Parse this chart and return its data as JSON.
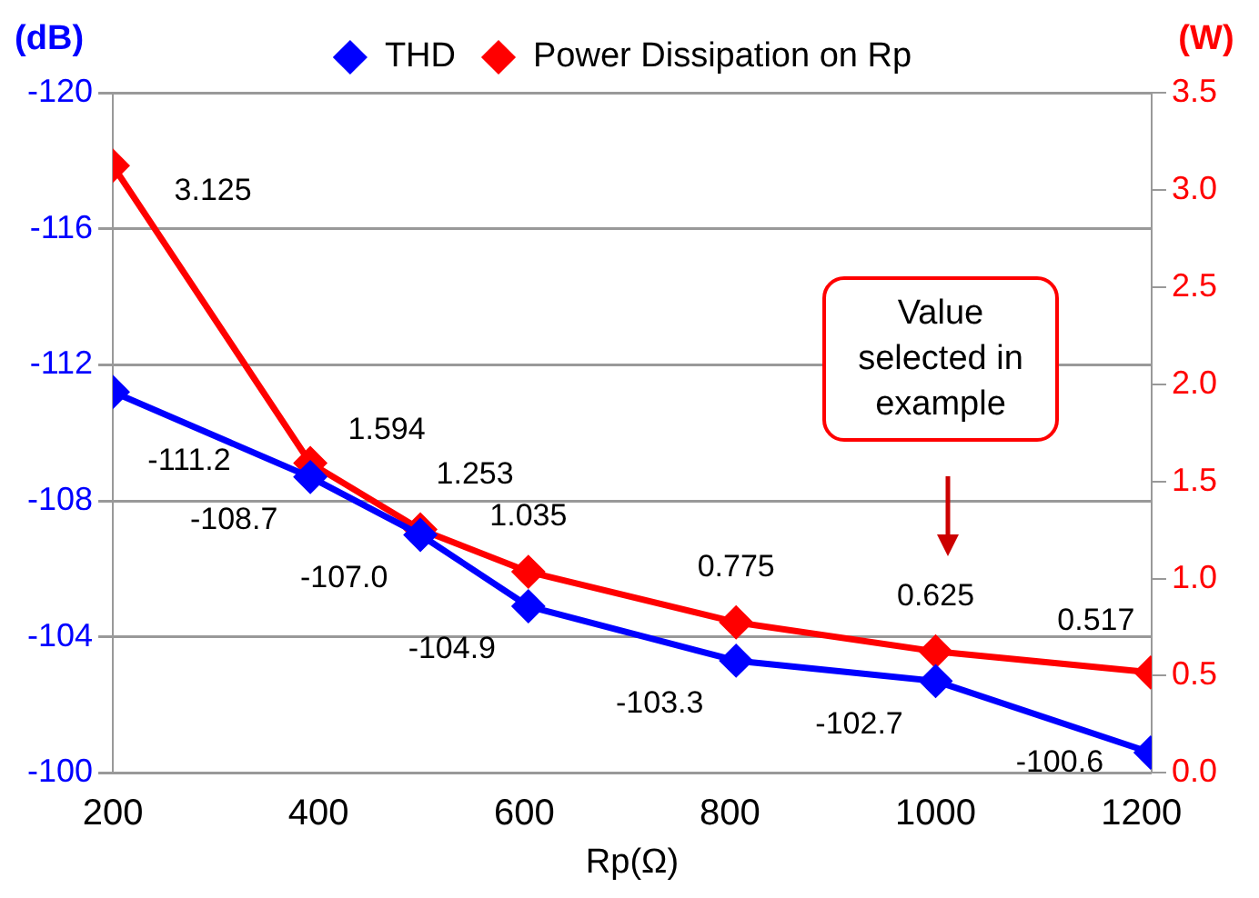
{
  "chart_data": {
    "type": "line",
    "xlabel": "Rp(Ω)",
    "ylabel": "(dB)",
    "y2label": "(W)",
    "x": [
      200,
      392,
      499,
      604,
      806,
      1000,
      1209
    ],
    "xlim": [
      200,
      1210
    ],
    "xticks": [
      200,
      400,
      600,
      800,
      1000,
      1200
    ],
    "ylim": [
      -100,
      -120
    ],
    "yticks": [
      -100,
      -104,
      -108,
      -112,
      -116,
      -120
    ],
    "y2lim": [
      0,
      3.5
    ],
    "y2ticks": [
      {
        "value": 0,
        "label": "0.0"
      },
      {
        "value": 0.5,
        "label": "0.5"
      },
      {
        "value": 1,
        "label": "1.0"
      },
      {
        "value": 1.5,
        "label": "1.5"
      },
      {
        "value": 2,
        "label": "2.0"
      },
      {
        "value": 2.5,
        "label": "2.5"
      },
      {
        "value": 3,
        "label": "3.0"
      },
      {
        "value": 3.5,
        "label": "3.5"
      }
    ],
    "series": [
      {
        "name": "THD",
        "color": "#0000ff",
        "values": [
          -111.2,
          -108.7,
          -107.0,
          -104.9,
          -103.3,
          -102.7,
          -100.6
        ],
        "value_labels": [
          "-111.2",
          "-108.7",
          "-107.0",
          "-104.9",
          "-103.3",
          "-102.7",
          "-100.6"
        ]
      },
      {
        "name": "Power Dissipation on Rp",
        "color": "#ff0000",
        "axis": "y2",
        "values": [
          3.125,
          1.594,
          1.253,
          1.035,
          0.775,
          0.625,
          0.517
        ],
        "value_labels": [
          "3.125",
          "1.594",
          "1.253",
          "1.035",
          "0.775",
          "0.625",
          "0.517"
        ]
      }
    ],
    "annotations": [
      "Value selected in example"
    ],
    "grid": "y",
    "legend": "top",
    "marker": "diamond",
    "line_style": "solid"
  }
}
